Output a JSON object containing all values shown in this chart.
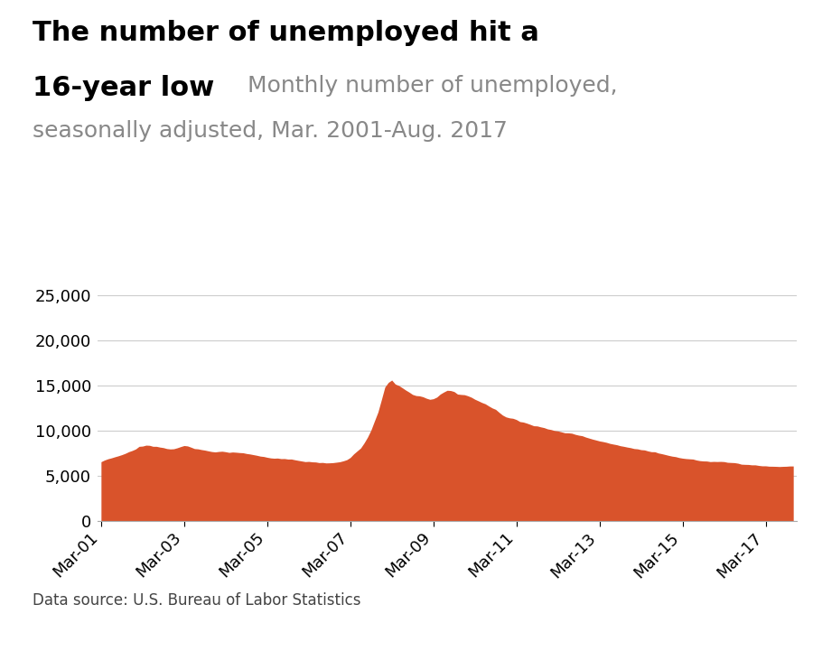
{
  "title_bold": "The number of unemployed hit a\n16-year low",
  "title_subtitle": "Monthly number of unemployed,\nseasonally adjusted, Mar. 2001-Aug. 2017",
  "source_text": "Data source: U.S. Bureau of Labor Statistics",
  "fill_color": "#D9532B",
  "ylim": [
    0,
    26000
  ],
  "yticks": [
    0,
    5000,
    10000,
    15000,
    20000,
    25000
  ],
  "xtick_labels": [
    "Mar-01",
    "Mar-03",
    "Mar-05",
    "Mar-07",
    "Mar-09",
    "Mar-11",
    "Mar-13",
    "Mar-15",
    "Mar-17"
  ],
  "xtick_positions": [
    0,
    24,
    48,
    72,
    96,
    120,
    144,
    168,
    192
  ],
  "monthly_data": [
    6552,
    6739,
    6879,
    6980,
    7101,
    7210,
    7336,
    7483,
    7665,
    7799,
    7968,
    8258,
    8287,
    8390,
    8370,
    8261,
    8258,
    8175,
    8118,
    8012,
    7969,
    7989,
    8097,
    8230,
    8347,
    8303,
    8163,
    8009,
    7979,
    7900,
    7839,
    7754,
    7680,
    7639,
    7689,
    7716,
    7660,
    7586,
    7631,
    7605,
    7568,
    7548,
    7465,
    7411,
    7338,
    7264,
    7175,
    7131,
    7043,
    6974,
    6940,
    6958,
    6896,
    6903,
    6847,
    6851,
    6769,
    6698,
    6632,
    6564,
    6587,
    6540,
    6524,
    6455,
    6472,
    6418,
    6429,
    6451,
    6499,
    6552,
    6652,
    6780,
    7023,
    7424,
    7751,
    8073,
    8636,
    9285,
    10074,
    11078,
    12059,
    13426,
    14837,
    15352,
    15612,
    15170,
    15014,
    14767,
    14507,
    14278,
    14018,
    13892,
    13861,
    13762,
    13594,
    13476,
    13541,
    13723,
    14055,
    14283,
    14477,
    14450,
    14337,
    14056,
    14014,
    13987,
    13864,
    13706,
    13484,
    13310,
    13127,
    12982,
    12741,
    12522,
    12362,
    12031,
    11728,
    11521,
    11418,
    11370,
    11232,
    11008,
    10952,
    10833,
    10694,
    10543,
    10523,
    10420,
    10335,
    10195,
    10123,
    10014,
    9963,
    9867,
    9763,
    9757,
    9715,
    9590,
    9498,
    9437,
    9290,
    9175,
    9060,
    8961,
    8857,
    8788,
    8703,
    8586,
    8508,
    8436,
    8327,
    8260,
    8178,
    8110,
    8013,
    7980,
    7889,
    7860,
    7748,
    7664,
    7658,
    7521,
    7443,
    7349,
    7253,
    7170,
    7115,
    7013,
    6946,
    6901,
    6873,
    6850,
    6742,
    6673,
    6638,
    6629,
    6566,
    6587,
    6574,
    6587,
    6566,
    6487,
    6468,
    6449,
    6388,
    6278,
    6258,
    6248,
    6204,
    6204,
    6140,
    6097,
    6097,
    6054,
    6049,
    6038,
    6019,
    6038,
    6049,
    6079,
    6079
  ]
}
